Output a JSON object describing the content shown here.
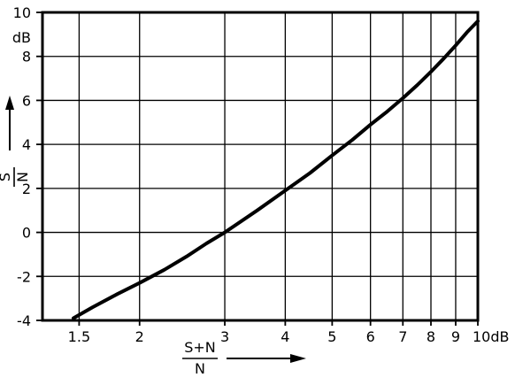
{
  "chart_data": {
    "type": "line",
    "x_scale": "log",
    "grid": true,
    "xlim": [
      1.26,
      10
    ],
    "ylim": [
      -4,
      10
    ],
    "x_ticks": [
      1.5,
      2,
      3,
      4,
      5,
      6,
      7,
      8,
      9,
      10
    ],
    "x_tick_labels": [
      "1.5",
      "2",
      "3",
      "4",
      "5",
      "6",
      "7",
      "8",
      "9",
      "10dB"
    ],
    "y_ticks": [
      -4,
      -2,
      0,
      2,
      4,
      6,
      8,
      10
    ],
    "y_tick_labels": [
      "-4",
      "-2",
      "0",
      "2",
      "4",
      "6",
      "8",
      "10"
    ],
    "y_unit": "dB",
    "xlabel": {
      "numerator": "S+N",
      "denominator": "N"
    },
    "ylabel": {
      "numerator": "S",
      "denominator": "N"
    },
    "series": [
      {
        "x": [
          1.46,
          1.6,
          1.8,
          2.0,
          2.25,
          2.5,
          2.75,
          3.0,
          3.5,
          4.0,
          4.5,
          5.0,
          5.5,
          6.0,
          6.5,
          7.0,
          7.5,
          8.0,
          8.5,
          9.0,
          9.5,
          10.0
        ],
        "y": [
          -3.9,
          -3.4,
          -2.8,
          -2.3,
          -1.7,
          -1.1,
          -0.5,
          0.0,
          1.0,
          1.9,
          2.7,
          3.5,
          4.2,
          4.9,
          5.5,
          6.1,
          6.7,
          7.3,
          7.9,
          8.5,
          9.1,
          9.6
        ]
      }
    ]
  }
}
